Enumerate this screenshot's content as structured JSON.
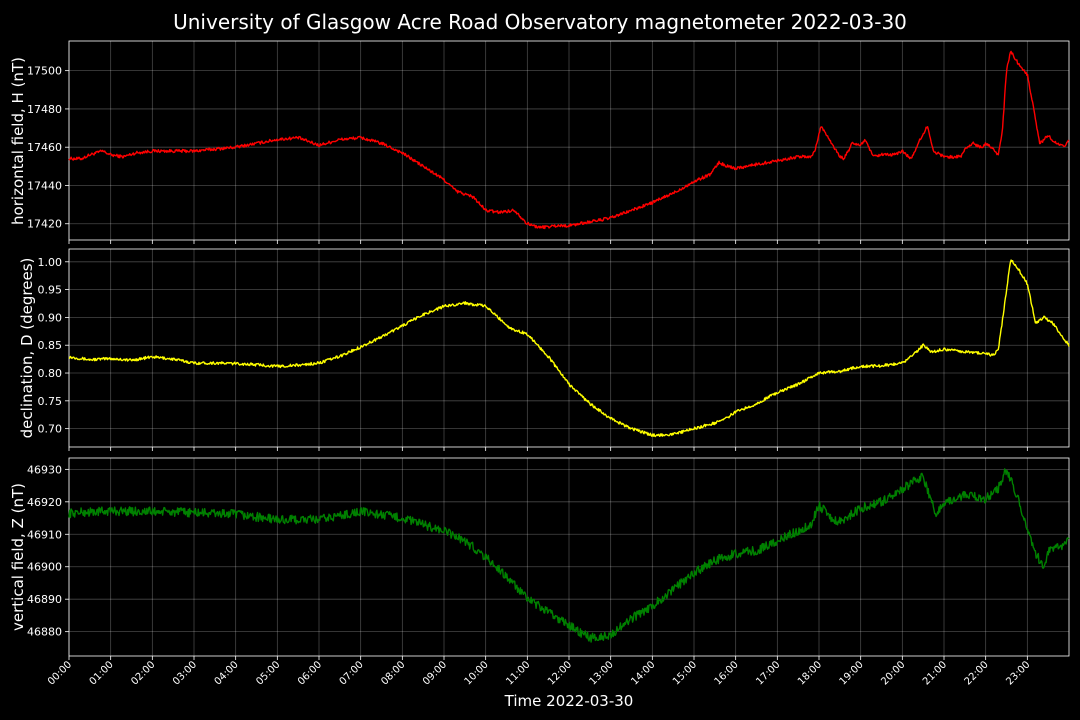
{
  "chart_data": {
    "type": "line",
    "title": "University of Glasgow Acre Road Observatory magnetometer 2022-03-30",
    "xlabel": "Time 2022-03-30",
    "x_ticks": [
      "00:00",
      "01:00",
      "02:00",
      "03:00",
      "04:00",
      "05:00",
      "06:00",
      "07:00",
      "08:00",
      "09:00",
      "10:00",
      "11:00",
      "12:00",
      "13:00",
      "14:00",
      "15:00",
      "16:00",
      "17:00",
      "18:00",
      "19:00",
      "20:00",
      "21:00",
      "22:00",
      "23:00"
    ],
    "xlim_hours": [
      0,
      24
    ],
    "grid": true,
    "panels": [
      {
        "name": "H",
        "ylabel": "horizontal field, H (nT)",
        "color": "#ff0000",
        "ylim": [
          17411.5,
          17515.5
        ],
        "yticks": [
          "17420",
          "17440",
          "17460",
          "17480",
          "17500"
        ],
        "ytick_values": [
          17420,
          17440,
          17460,
          17480,
          17500
        ],
        "noise": 0.8,
        "points": [
          [
            0,
            17454
          ],
          [
            0.3,
            17454
          ],
          [
            0.5,
            17456
          ],
          [
            0.8,
            17458
          ],
          [
            1,
            17456
          ],
          [
            1.3,
            17455
          ],
          [
            1.6,
            17457
          ],
          [
            2,
            17458
          ],
          [
            2.5,
            17458
          ],
          [
            3,
            17458
          ],
          [
            3.5,
            17459
          ],
          [
            4,
            17460
          ],
          [
            4.5,
            17462
          ],
          [
            5,
            17464
          ],
          [
            5.5,
            17465
          ],
          [
            6,
            17461
          ],
          [
            6.5,
            17464
          ],
          [
            7,
            17465
          ],
          [
            7.5,
            17462
          ],
          [
            8,
            17457
          ],
          [
            8.5,
            17450
          ],
          [
            9,
            17443
          ],
          [
            9.3,
            17437
          ],
          [
            9.7,
            17434
          ],
          [
            10,
            17427
          ],
          [
            10.3,
            17426
          ],
          [
            10.7,
            17427
          ],
          [
            11,
            17420
          ],
          [
            11.3,
            17418
          ],
          [
            11.7,
            17419
          ],
          [
            12,
            17419
          ],
          [
            12.5,
            17421
          ],
          [
            13,
            17423
          ],
          [
            13.5,
            17427
          ],
          [
            14,
            17431
          ],
          [
            14.5,
            17436
          ],
          [
            15,
            17442
          ],
          [
            15.4,
            17446
          ],
          [
            15.6,
            17452
          ],
          [
            15.8,
            17450
          ],
          [
            16,
            17449
          ],
          [
            16.5,
            17451
          ],
          [
            17,
            17453
          ],
          [
            17.5,
            17455
          ],
          [
            17.8,
            17455
          ],
          [
            17.9,
            17458
          ],
          [
            18.05,
            17471
          ],
          [
            18.2,
            17466
          ],
          [
            18.5,
            17455
          ],
          [
            18.6,
            17454
          ],
          [
            18.8,
            17462
          ],
          [
            19,
            17461
          ],
          [
            19.1,
            17464
          ],
          [
            19.3,
            17455
          ],
          [
            19.5,
            17456
          ],
          [
            19.8,
            17456
          ],
          [
            20,
            17458
          ],
          [
            20.2,
            17454
          ],
          [
            20.3,
            17458
          ],
          [
            20.45,
            17465
          ],
          [
            20.6,
            17471
          ],
          [
            20.75,
            17458
          ],
          [
            21,
            17455
          ],
          [
            21.2,
            17455
          ],
          [
            21.4,
            17455
          ],
          [
            21.5,
            17459
          ],
          [
            21.7,
            17462
          ],
          [
            21.9,
            17460
          ],
          [
            22,
            17462
          ],
          [
            22.15,
            17460
          ],
          [
            22.3,
            17456
          ],
          [
            22.4,
            17468
          ],
          [
            22.5,
            17500
          ],
          [
            22.6,
            17510
          ],
          [
            22.8,
            17503
          ],
          [
            23,
            17498
          ],
          [
            23.15,
            17480
          ],
          [
            23.3,
            17462
          ],
          [
            23.5,
            17466
          ],
          [
            23.7,
            17462
          ],
          [
            23.9,
            17460
          ],
          [
            24,
            17464
          ]
        ]
      },
      {
        "name": "D",
        "ylabel": "declination, D (degrees)",
        "color": "#ffff00",
        "ylim": [
          0.667,
          1.023
        ],
        "yticks": [
          "0.70",
          "0.75",
          "0.80",
          "0.85",
          "0.90",
          "0.95",
          "1.00"
        ],
        "ytick_values": [
          0.7,
          0.75,
          0.8,
          0.85,
          0.9,
          0.95,
          1.0
        ],
        "noise": 0.0025,
        "points": [
          [
            0,
            0.829
          ],
          [
            0.5,
            0.824
          ],
          [
            1,
            0.826
          ],
          [
            1.5,
            0.823
          ],
          [
            2,
            0.829
          ],
          [
            2.5,
            0.825
          ],
          [
            3,
            0.818
          ],
          [
            3.5,
            0.818
          ],
          [
            4,
            0.817
          ],
          [
            4.5,
            0.815
          ],
          [
            5,
            0.812
          ],
          [
            5.5,
            0.814
          ],
          [
            6,
            0.818
          ],
          [
            6.5,
            0.83
          ],
          [
            7,
            0.847
          ],
          [
            7.5,
            0.865
          ],
          [
            8,
            0.885
          ],
          [
            8.5,
            0.905
          ],
          [
            9,
            0.92
          ],
          [
            9.5,
            0.926
          ],
          [
            10,
            0.92
          ],
          [
            10.3,
            0.9
          ],
          [
            10.6,
            0.88
          ],
          [
            11,
            0.87
          ],
          [
            11.5,
            0.83
          ],
          [
            12,
            0.78
          ],
          [
            12.5,
            0.745
          ],
          [
            13,
            0.718
          ],
          [
            13.5,
            0.7
          ],
          [
            14,
            0.688
          ],
          [
            14.5,
            0.69
          ],
          [
            15,
            0.7
          ],
          [
            15.5,
            0.71
          ],
          [
            15.8,
            0.72
          ],
          [
            16,
            0.73
          ],
          [
            16.5,
            0.745
          ],
          [
            17,
            0.765
          ],
          [
            17.5,
            0.78
          ],
          [
            18,
            0.8
          ],
          [
            18.5,
            0.803
          ],
          [
            19,
            0.812
          ],
          [
            19.5,
            0.813
          ],
          [
            20,
            0.818
          ],
          [
            20.3,
            0.835
          ],
          [
            20.5,
            0.85
          ],
          [
            20.7,
            0.838
          ],
          [
            21,
            0.843
          ],
          [
            21.5,
            0.838
          ],
          [
            22,
            0.835
          ],
          [
            22.15,
            0.832
          ],
          [
            22.3,
            0.84
          ],
          [
            22.45,
            0.92
          ],
          [
            22.6,
            1.005
          ],
          [
            22.8,
            0.985
          ],
          [
            23,
            0.96
          ],
          [
            23.2,
            0.89
          ],
          [
            23.4,
            0.9
          ],
          [
            23.6,
            0.89
          ],
          [
            23.8,
            0.87
          ],
          [
            24,
            0.85
          ]
        ]
      },
      {
        "name": "Z",
        "ylabel": "vertical field, Z (nT)",
        "color": "#008000",
        "ylim": [
          46872.5,
          46933.5
        ],
        "yticks": [
          "46880",
          "46890",
          "46900",
          "46910",
          "46920",
          "46930"
        ],
        "ytick_values": [
          46880,
          46890,
          46900,
          46910,
          46920,
          46930
        ],
        "noise": 1.4,
        "points": [
          [
            0,
            46916.5
          ],
          [
            1,
            46917.2
          ],
          [
            2,
            46917
          ],
          [
            3,
            46916.7
          ],
          [
            4,
            46916.2
          ],
          [
            5,
            46914.5
          ],
          [
            6,
            46914.5
          ],
          [
            7,
            46917
          ],
          [
            7.5,
            46916
          ],
          [
            8,
            46915
          ],
          [
            8.5,
            46913
          ],
          [
            9,
            46911
          ],
          [
            9.5,
            46908
          ],
          [
            10,
            46903
          ],
          [
            10.5,
            46897
          ],
          [
            11,
            46890
          ],
          [
            11.5,
            46886
          ],
          [
            12,
            46882
          ],
          [
            12.5,
            46878
          ],
          [
            13,
            46879
          ],
          [
            13.5,
            46884
          ],
          [
            14,
            46888
          ],
          [
            14.5,
            46893
          ],
          [
            15,
            46898
          ],
          [
            15.5,
            46902
          ],
          [
            16,
            46904
          ],
          [
            16.5,
            46905
          ],
          [
            17,
            46908
          ],
          [
            17.5,
            46911
          ],
          [
            17.8,
            46913
          ],
          [
            18,
            46919
          ],
          [
            18.3,
            46915
          ],
          [
            18.5,
            46914
          ],
          [
            19,
            46918
          ],
          [
            19.5,
            46920
          ],
          [
            20,
            46924
          ],
          [
            20.5,
            46928
          ],
          [
            20.8,
            46916
          ],
          [
            21,
            46920
          ],
          [
            21.5,
            46922
          ],
          [
            22,
            46921
          ],
          [
            22.3,
            46924
          ],
          [
            22.5,
            46930
          ],
          [
            22.8,
            46920
          ],
          [
            23,
            46912
          ],
          [
            23.2,
            46904
          ],
          [
            23.4,
            46900
          ],
          [
            23.5,
            46905
          ],
          [
            23.8,
            46906
          ],
          [
            24,
            46908
          ]
        ]
      }
    ]
  }
}
